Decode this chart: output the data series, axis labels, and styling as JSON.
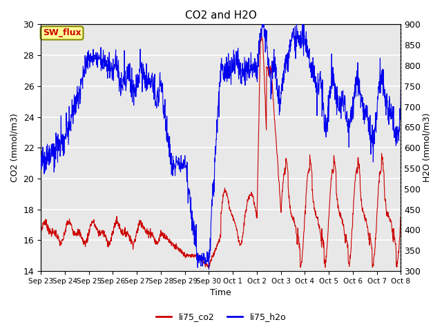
{
  "title": "CO2 and H2O",
  "xlabel": "Time",
  "ylabel_left": "CO2 (mmol/m3)",
  "ylabel_right": "H2O (mmol/m3)",
  "ylim_left": [
    14,
    30
  ],
  "ylim_right": [
    300,
    900
  ],
  "yticks_left": [
    14,
    16,
    18,
    20,
    22,
    24,
    26,
    28,
    30
  ],
  "yticks_right": [
    300,
    350,
    400,
    450,
    500,
    550,
    600,
    650,
    700,
    750,
    800,
    850,
    900
  ],
  "xtick_labels": [
    "Sep 23",
    "Sep 24",
    "Sep 25",
    "Sep 26",
    "Sep 27",
    "Sep 28",
    "Sep 29",
    "Sep 30",
    "Oct 1",
    "Oct 2",
    "Oct 3",
    "Oct 4",
    "Oct 5",
    "Oct 6",
    "Oct 7",
    "Oct 8"
  ],
  "color_co2": "#cc0000",
  "color_h2o": "#0000ee",
  "legend_co2": "li75_co2",
  "legend_h2o": "li75_h2o",
  "annotation_text": "SW_flux",
  "annotation_color": "#cc0000",
  "annotation_bg": "#ffff99",
  "annotation_border": "#888800",
  "background_color": "#e8e8e8",
  "grid_color": "#ffffff",
  "fig_bg": "#ffffff"
}
